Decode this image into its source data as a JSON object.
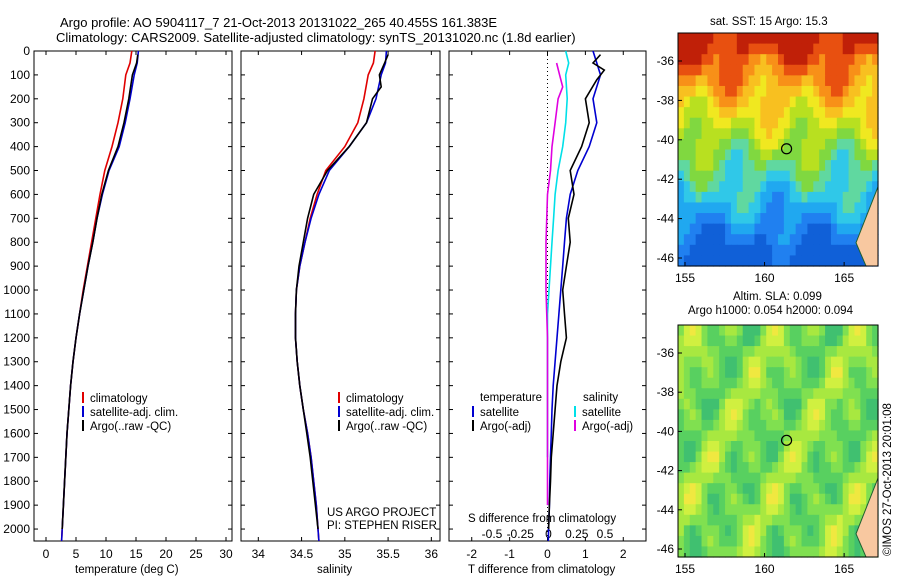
{
  "header": {
    "line1": "Argo profile: AO 5904117_7 21-Oct-2013 20131022_265 40.455S 161.383E",
    "line2": "Climatology: CARS2009. Satellite-adjusted climatology: synTS_20131020.nc (1.8d earlier)"
  },
  "colors": {
    "climatology": "#e00000",
    "satellite": "#0000d0",
    "argo": "#000000",
    "salinity_satellite": "#00e0e8",
    "salinity_argo": "#e000e0"
  },
  "panels": {
    "temperature": {
      "xlabel": "temperature (deg C)",
      "legend": [
        "climatology",
        "satellite-adj. clim.",
        "Argo(..raw -QC)"
      ]
    },
    "salinity": {
      "xlabel": "salinity",
      "legend": [
        "climatology",
        "satellite-adj. clim.",
        "Argo(..raw -QC)"
      ],
      "note1": "US ARGO PROJECT",
      "note2": "PI: STEPHEN RISER"
    },
    "difference": {
      "xlabel": "T difference from climatology",
      "top_xlabel": "S difference from climatology",
      "legend_temp_title": "temperature",
      "legend_sal_title": "salinity",
      "legend_temp": [
        "satellite",
        "Argo(-adj)"
      ],
      "legend_sal": [
        "satellite",
        "Argo(-adj)"
      ]
    }
  },
  "maps": {
    "sst_title": "sat. SST: 15 Argo: 15.3",
    "sla_title1": "Altim. SLA: 0.099",
    "sla_title2": "Argo h1000: 0.054 h2000: 0.094",
    "ylabels": [
      "-36",
      "-38",
      "-40",
      "-42",
      "-44",
      "-46"
    ],
    "xlabels": [
      "155",
      "160",
      "165"
    ],
    "float_lat": -40.455,
    "float_lon": 161.383
  },
  "footer": {
    "stamp": "©IMOS 27-Oct-2013 20:01:08"
  },
  "chart_data": [
    {
      "type": "line",
      "title": "Argo profile: AO 5904117_7 21-Oct-2013 20131022_265 40.455S 161.383E",
      "xlabel": "temperature (deg C)",
      "ylabel": "",
      "xlim": [
        -2,
        31
      ],
      "ylim": [
        2050,
        0
      ],
      "xticks": [
        0,
        5,
        10,
        15,
        20,
        25,
        30
      ],
      "yticks": [
        0,
        100,
        200,
        300,
        400,
        500,
        600,
        700,
        800,
        900,
        1000,
        1100,
        1200,
        1300,
        1400,
        1500,
        1600,
        1700,
        1800,
        1900,
        2000
      ],
      "series": [
        {
          "name": "climatology",
          "points": [
            [
              14.3,
              0
            ],
            [
              14.0,
              50
            ],
            [
              13.3,
              100
            ],
            [
              12.8,
              200
            ],
            [
              12.0,
              300
            ],
            [
              11.0,
              400
            ],
            [
              9.8,
              500
            ],
            [
              9.0,
              600
            ],
            [
              8.3,
              700
            ],
            [
              7.6,
              800
            ],
            [
              6.9,
              900
            ],
            [
              6.2,
              1000
            ],
            [
              5.6,
              1100
            ],
            [
              5.0,
              1200
            ],
            [
              4.5,
              1300
            ],
            [
              4.1,
              1400
            ],
            [
              3.8,
              1500
            ],
            [
              3.5,
              1600
            ],
            [
              3.3,
              1700
            ],
            [
              3.1,
              1800
            ],
            [
              2.9,
              1900
            ],
            [
              2.7,
              2000
            ],
            [
              2.6,
              2050
            ]
          ]
        },
        {
          "name": "satellite-adj. clim.",
          "points": [
            [
              15.4,
              0
            ],
            [
              15.2,
              50
            ],
            [
              14.7,
              100
            ],
            [
              14.0,
              200
            ],
            [
              13.2,
              300
            ],
            [
              12.2,
              400
            ],
            [
              10.5,
              500
            ],
            [
              9.4,
              600
            ],
            [
              8.5,
              700
            ],
            [
              7.8,
              800
            ],
            [
              7.0,
              900
            ],
            [
              6.3,
              1000
            ],
            [
              5.6,
              1100
            ],
            [
              5.0,
              1200
            ],
            [
              4.5,
              1300
            ],
            [
              4.1,
              1400
            ],
            [
              3.8,
              1500
            ],
            [
              3.5,
              1600
            ],
            [
              3.3,
              1700
            ],
            [
              3.1,
              1800
            ],
            [
              2.9,
              1900
            ],
            [
              2.7,
              2000
            ],
            [
              2.6,
              2050
            ]
          ]
        },
        {
          "name": "Argo(..raw -QC)",
          "points": [
            [
              15.3,
              15
            ],
            [
              15.1,
              50
            ],
            [
              14.4,
              100
            ],
            [
              13.8,
              200
            ],
            [
              13.0,
              300
            ],
            [
              12.0,
              400
            ],
            [
              10.4,
              500
            ],
            [
              9.3,
              600
            ],
            [
              8.5,
              700
            ],
            [
              7.8,
              800
            ],
            [
              7.0,
              900
            ],
            [
              6.3,
              1000
            ],
            [
              5.6,
              1100
            ],
            [
              5.0,
              1200
            ],
            [
              4.5,
              1300
            ],
            [
              4.1,
              1400
            ],
            [
              3.8,
              1500
            ],
            [
              3.5,
              1600
            ],
            [
              3.3,
              1700
            ],
            [
              3.1,
              1800
            ],
            [
              2.9,
              1900
            ],
            [
              2.7,
              2000
            ]
          ]
        }
      ]
    },
    {
      "type": "line",
      "title": "",
      "xlabel": "salinity",
      "ylabel": "",
      "xlim": [
        33.8,
        36.1
      ],
      "ylim": [
        2050,
        0
      ],
      "xticks": [
        34,
        34.5,
        35,
        35.5,
        36
      ],
      "series": [
        {
          "name": "climatology",
          "points": [
            [
              35.35,
              0
            ],
            [
              35.33,
              50
            ],
            [
              35.27,
              100
            ],
            [
              35.22,
              200
            ],
            [
              35.15,
              300
            ],
            [
              35.0,
              400
            ],
            [
              34.78,
              500
            ],
            [
              34.68,
              600
            ],
            [
              34.6,
              700
            ],
            [
              34.54,
              800
            ],
            [
              34.48,
              900
            ],
            [
              34.44,
              1000
            ],
            [
              34.43,
              1100
            ],
            [
              34.43,
              1200
            ],
            [
              34.45,
              1300
            ],
            [
              34.48,
              1400
            ],
            [
              34.52,
              1500
            ],
            [
              34.57,
              1600
            ],
            [
              34.61,
              1700
            ],
            [
              34.64,
              1800
            ],
            [
              34.67,
              1900
            ],
            [
              34.69,
              2000
            ],
            [
              34.7,
              2050
            ]
          ]
        },
        {
          "name": "satellite-adj. clim.",
          "points": [
            [
              35.48,
              0
            ],
            [
              35.47,
              50
            ],
            [
              35.42,
              100
            ],
            [
              35.36,
              200
            ],
            [
              35.25,
              300
            ],
            [
              35.05,
              400
            ],
            [
              34.82,
              500
            ],
            [
              34.7,
              600
            ],
            [
              34.61,
              700
            ],
            [
              34.54,
              800
            ],
            [
              34.48,
              900
            ],
            [
              34.44,
              1000
            ],
            [
              34.43,
              1100
            ],
            [
              34.43,
              1200
            ],
            [
              34.45,
              1300
            ],
            [
              34.48,
              1400
            ],
            [
              34.52,
              1500
            ],
            [
              34.57,
              1600
            ],
            [
              34.61,
              1700
            ],
            [
              34.64,
              1800
            ],
            [
              34.67,
              1900
            ],
            [
              34.69,
              2000
            ],
            [
              34.7,
              2050
            ]
          ]
        },
        {
          "name": "Argo(..raw -QC)",
          "points": [
            [
              35.5,
              15
            ],
            [
              35.46,
              50
            ],
            [
              35.4,
              100
            ],
            [
              35.42,
              150
            ],
            [
              35.32,
              200
            ],
            [
              35.25,
              300
            ],
            [
              35.05,
              400
            ],
            [
              34.8,
              500
            ],
            [
              34.72,
              550
            ],
            [
              34.64,
              600
            ],
            [
              34.57,
              700
            ],
            [
              34.52,
              800
            ],
            [
              34.47,
              900
            ],
            [
              34.44,
              1000
            ],
            [
              34.43,
              1100
            ],
            [
              34.43,
              1200
            ],
            [
              34.45,
              1300
            ],
            [
              34.48,
              1400
            ],
            [
              34.52,
              1500
            ],
            [
              34.56,
              1600
            ],
            [
              34.6,
              1700
            ],
            [
              34.63,
              1800
            ],
            [
              34.66,
              1900
            ],
            [
              34.69,
              2000
            ]
          ]
        }
      ]
    },
    {
      "type": "line",
      "title": "",
      "xlabel": "T difference from climatology",
      "top_xlabel": "S difference from climatology",
      "xlim": [
        -2.6,
        2.6
      ],
      "ylim": [
        2050,
        0
      ],
      "xticks": [
        -2,
        -1,
        0,
        1,
        2
      ],
      "top_xticks": [
        -0.5,
        -0.25,
        0,
        0.25,
        0.5
      ],
      "series": [
        {
          "name": "temperature satellite",
          "points": [
            [
              1.2,
              0
            ],
            [
              1.3,
              50
            ],
            [
              1.4,
              100
            ],
            [
              1.2,
              200
            ],
            [
              1.3,
              300
            ],
            [
              1.1,
              400
            ],
            [
              0.8,
              500
            ],
            [
              0.6,
              600
            ],
            [
              0.5,
              700
            ],
            [
              0.45,
              800
            ],
            [
              0.4,
              900
            ],
            [
              0.35,
              1000
            ],
            [
              0.3,
              1100
            ],
            [
              0.25,
              1200
            ],
            [
              0.2,
              1300
            ],
            [
              0.15,
              1400
            ],
            [
              0.12,
              1500
            ],
            [
              0.1,
              1600
            ],
            [
              0.08,
              1700
            ],
            [
              0.06,
              1800
            ],
            [
              0.05,
              1900
            ],
            [
              0.03,
              2000
            ],
            [
              0.02,
              2050
            ]
          ]
        },
        {
          "name": "temperature Argo(-adj)",
          "points": [
            [
              1.4,
              15
            ],
            [
              1.2,
              50
            ],
            [
              1.5,
              80
            ],
            [
              1.3,
              120
            ],
            [
              1.0,
              200
            ],
            [
              1.1,
              300
            ],
            [
              0.9,
              400
            ],
            [
              0.6,
              500
            ],
            [
              0.7,
              600
            ],
            [
              0.55,
              700
            ],
            [
              0.6,
              800
            ],
            [
              0.5,
              900
            ],
            [
              0.4,
              1000
            ],
            [
              0.45,
              1100
            ],
            [
              0.5,
              1200
            ],
            [
              0.35,
              1300
            ],
            [
              0.25,
              1400
            ],
            [
              0.2,
              1500
            ],
            [
              0.15,
              1600
            ],
            [
              0.1,
              1700
            ],
            [
              0.08,
              1800
            ],
            [
              0.05,
              1900
            ],
            [
              0.03,
              2000
            ]
          ]
        },
        {
          "name": "salinity satellite",
          "points": [
            [
              0.12,
              0
            ],
            [
              0.14,
              50
            ],
            [
              0.12,
              100
            ],
            [
              0.13,
              200
            ],
            [
              0.12,
              300
            ],
            [
              0.1,
              400
            ],
            [
              0.07,
              500
            ],
            [
              0.05,
              600
            ],
            [
              0.04,
              700
            ],
            [
              0.03,
              800
            ],
            [
              0.02,
              900
            ],
            [
              0.01,
              1000
            ],
            [
              0.0,
              1100
            ],
            [
              0.0,
              1200
            ],
            [
              0.0,
              1300
            ],
            [
              0.0,
              1400
            ],
            [
              0.0,
              1500
            ],
            [
              0.0,
              1600
            ],
            [
              0.0,
              1700
            ]
          ]
        },
        {
          "name": "salinity Argo(-adj)",
          "points": [
            [
              0.06,
              50
            ],
            [
              0.08,
              100
            ],
            [
              0.1,
              150
            ],
            [
              0.07,
              200
            ],
            [
              0.05,
              300
            ],
            [
              0.03,
              400
            ],
            [
              0.02,
              500
            ],
            [
              0.0,
              600
            ],
            [
              -0.01,
              800
            ],
            [
              -0.01,
              1000
            ],
            [
              0.0,
              1200
            ],
            [
              0.0,
              1400
            ],
            [
              0.0,
              1500
            ],
            [
              0.0,
              1700
            ],
            [
              0.0,
              1900
            ]
          ]
        }
      ]
    }
  ]
}
